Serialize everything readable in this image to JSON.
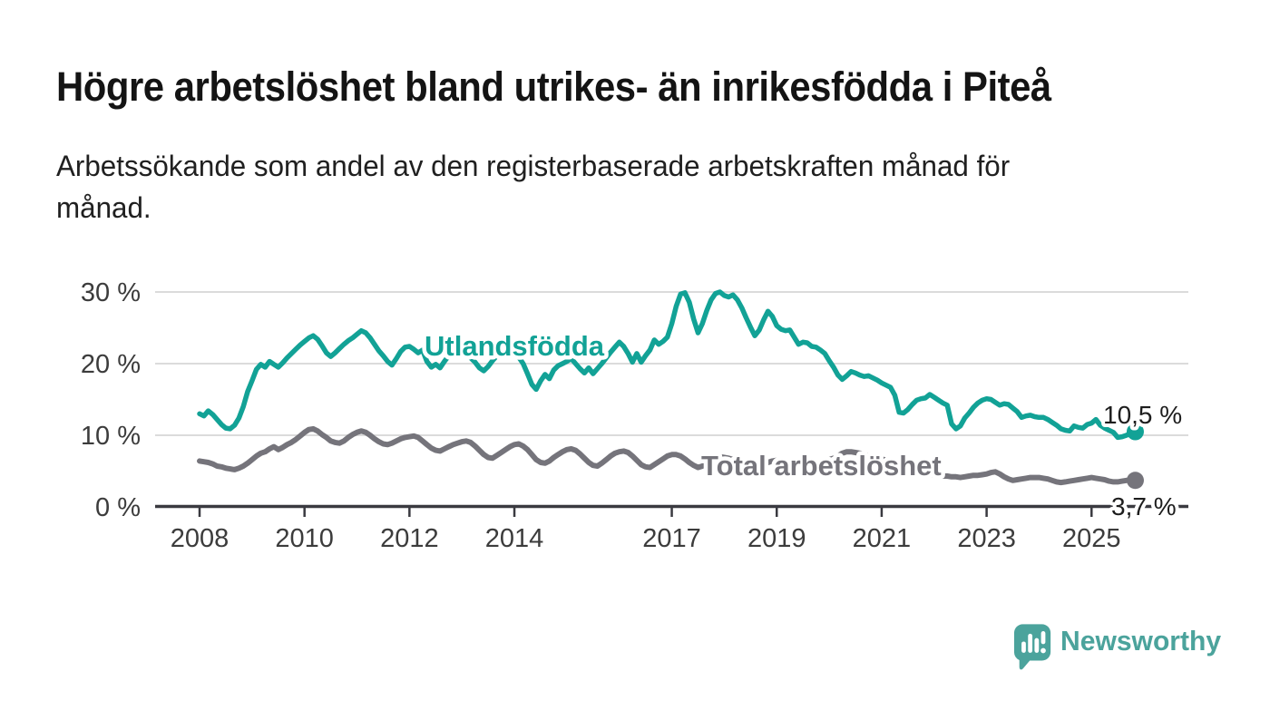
{
  "header": {
    "title": "Högre arbetslöshet bland utrikes- än inrikesfödda i Piteå",
    "subtitle": "Arbetssökande som andel av den registerbaserade arbetskraften månad för månad.",
    "subtitle_lines": [
      "Arbetssökande som andel av den registerbaserade arbetskraften månad för",
      "månad."
    ]
  },
  "branding": {
    "name": "Newsworthy",
    "logo_icon": "bar-chart-speech-bubble-icon",
    "color": "#4BA39C"
  },
  "chart_data": {
    "type": "line",
    "title": "Högre arbetslöshet bland utrikes- än inrikesfödda i Piteå",
    "subtitle": "Arbetssökande som andel av den registerbaserade arbetskraften månad för månad.",
    "x_start": "2008-01",
    "x_end": "2025-11",
    "x_freq": "monthly",
    "grid": "horizontal",
    "legend_position": "inline-labels",
    "ylim": [
      0,
      32
    ],
    "y_ticks": [
      {
        "label": "0 %",
        "value": 0
      },
      {
        "label": "10 %",
        "value": 10
      },
      {
        "label": "20 %",
        "value": 20
      },
      {
        "label": "30 %",
        "value": 30
      }
    ],
    "x_ticks": [
      {
        "label": "2008",
        "year": 2008
      },
      {
        "label": "2010",
        "year": 2010
      },
      {
        "label": "2012",
        "year": 2012
      },
      {
        "label": "2014",
        "year": 2014
      },
      {
        "label": "2017",
        "year": 2017
      },
      {
        "label": "2019",
        "year": 2019
      },
      {
        "label": "2021",
        "year": 2021
      },
      {
        "label": "2023",
        "year": 2023
      },
      {
        "label": "2025",
        "year": 2025
      }
    ],
    "series": [
      {
        "name": "Utlandsfödda",
        "color": "#12A296",
        "end_value": 10.5,
        "end_label": "10,5 %",
        "values": [
          13.0,
          12.7,
          13.4,
          12.9,
          12.2,
          11.5,
          11.0,
          10.9,
          11.4,
          12.4,
          14.0,
          16.1,
          17.6,
          19.2,
          19.9,
          19.5,
          20.3,
          19.9,
          19.5,
          20.1,
          20.8,
          21.4,
          22.0,
          22.6,
          23.1,
          23.6,
          23.9,
          23.4,
          22.5,
          21.5,
          21.0,
          21.5,
          22.1,
          22.7,
          23.2,
          23.6,
          24.1,
          24.6,
          24.3,
          23.6,
          22.7,
          21.8,
          21.1,
          20.3,
          19.8,
          20.7,
          21.7,
          22.3,
          22.4,
          22.0,
          21.5,
          21.9,
          20.3,
          19.5,
          19.9,
          19.4,
          20.3,
          21.1,
          21.7,
          22.0,
          22.1,
          21.5,
          20.8,
          20.2,
          19.4,
          19.0,
          19.6,
          20.4,
          21.1,
          21.6,
          21.9,
          22.1,
          21.7,
          20.9,
          20.0,
          18.6,
          17.1,
          16.4,
          17.6,
          18.5,
          17.9,
          19.1,
          19.7,
          20.0,
          20.3,
          20.7,
          20.0,
          19.3,
          18.7,
          19.4,
          18.6,
          19.3,
          20.0,
          20.8,
          21.6,
          22.3,
          23.0,
          22.4,
          21.4,
          20.2,
          21.4,
          20.2,
          21.1,
          21.9,
          23.3,
          22.7,
          23.1,
          23.7,
          25.6,
          28.0,
          29.7,
          29.9,
          28.6,
          26.2,
          24.3,
          25.6,
          27.4,
          28.9,
          29.8,
          30.0,
          29.5,
          29.3,
          29.6,
          28.9,
          27.8,
          26.4,
          25.1,
          23.9,
          24.7,
          26.1,
          27.3,
          26.6,
          25.3,
          24.8,
          24.6,
          24.7,
          23.7,
          22.7,
          23.0,
          22.9,
          22.4,
          22.3,
          21.9,
          21.4,
          20.4,
          19.5,
          18.4,
          17.8,
          18.3,
          18.9,
          18.7,
          18.4,
          18.2,
          18.3,
          18.0,
          17.7,
          17.3,
          17.0,
          16.7,
          15.6,
          13.2,
          13.1,
          13.6,
          14.3,
          14.9,
          15.1,
          15.2,
          15.7,
          15.3,
          14.9,
          14.5,
          14.2,
          11.6,
          10.9,
          11.3,
          12.4,
          13.1,
          13.9,
          14.5,
          14.9,
          15.1,
          15.0,
          14.6,
          14.2,
          14.4,
          14.3,
          13.8,
          13.3,
          12.5,
          12.7,
          12.8,
          12.6,
          12.5,
          12.5,
          12.2,
          11.8,
          11.4,
          10.9,
          10.7,
          10.6,
          11.3,
          11.1,
          11.0,
          11.5,
          11.7,
          12.2,
          11.4,
          11.0,
          10.7,
          10.4,
          9.7,
          9.8,
          10.0,
          10.3,
          10.5
        ]
      },
      {
        "name": "Total arbetslöshet",
        "color": "#75747B",
        "end_value": 3.7,
        "end_label": "3,7 %",
        "values": [
          6.4,
          6.3,
          6.2,
          6.0,
          5.7,
          5.6,
          5.4,
          5.3,
          5.2,
          5.4,
          5.7,
          6.1,
          6.6,
          7.1,
          7.5,
          7.7,
          8.1,
          8.4,
          8.0,
          8.3,
          8.7,
          9.0,
          9.4,
          9.9,
          10.4,
          10.8,
          10.9,
          10.6,
          10.1,
          9.7,
          9.2,
          9.0,
          8.9,
          9.2,
          9.7,
          10.1,
          10.4,
          10.6,
          10.4,
          10.0,
          9.5,
          9.1,
          8.8,
          8.7,
          8.9,
          9.2,
          9.5,
          9.7,
          9.8,
          9.9,
          9.7,
          9.2,
          8.7,
          8.2,
          7.9,
          7.8,
          8.1,
          8.4,
          8.7,
          8.9,
          9.1,
          9.2,
          9.0,
          8.5,
          7.9,
          7.3,
          6.9,
          6.8,
          7.2,
          7.6,
          8.0,
          8.4,
          8.7,
          8.8,
          8.5,
          8.0,
          7.3,
          6.6,
          6.2,
          6.1,
          6.4,
          6.9,
          7.3,
          7.7,
          8.0,
          8.1,
          7.9,
          7.4,
          6.8,
          6.2,
          5.8,
          5.7,
          6.1,
          6.6,
          7.1,
          7.5,
          7.7,
          7.8,
          7.6,
          7.1,
          6.5,
          5.9,
          5.6,
          5.5,
          5.9,
          6.3,
          6.7,
          7.1,
          7.3,
          7.3,
          7.1,
          6.7,
          6.2,
          5.8,
          5.5,
          5.7,
          6.0,
          6.4,
          6.7,
          7.0,
          6.9,
          6.8,
          6.6,
          6.2,
          5.8,
          5.5,
          5.3,
          5.4,
          5.7,
          6.0,
          6.2,
          6.4,
          6.5,
          6.5,
          6.3,
          6.0,
          5.7,
          5.5,
          5.4,
          5.5,
          5.8,
          6.0,
          6.2,
          6.4,
          6.6,
          6.8,
          7.1,
          7.5,
          7.7,
          7.7,
          7.6,
          7.5,
          7.3,
          7.1,
          6.9,
          6.8,
          6.7,
          6.5,
          6.3,
          6.0,
          5.7,
          5.4,
          5.2,
          5.0,
          4.9,
          4.8,
          4.7,
          4.6,
          4.5,
          4.4,
          4.3,
          4.3,
          4.2,
          4.2,
          4.1,
          4.2,
          4.3,
          4.4,
          4.4,
          4.5,
          4.6,
          4.8,
          4.9,
          4.6,
          4.2,
          3.9,
          3.7,
          3.8,
          3.9,
          4.0,
          4.1,
          4.1,
          4.1,
          4.0,
          3.9,
          3.7,
          3.5,
          3.4,
          3.5,
          3.6,
          3.7,
          3.8,
          3.9,
          4.0,
          4.1,
          4.0,
          3.9,
          3.8,
          3.6,
          3.5,
          3.5,
          3.6,
          3.7,
          3.7,
          3.7
        ]
      }
    ]
  }
}
